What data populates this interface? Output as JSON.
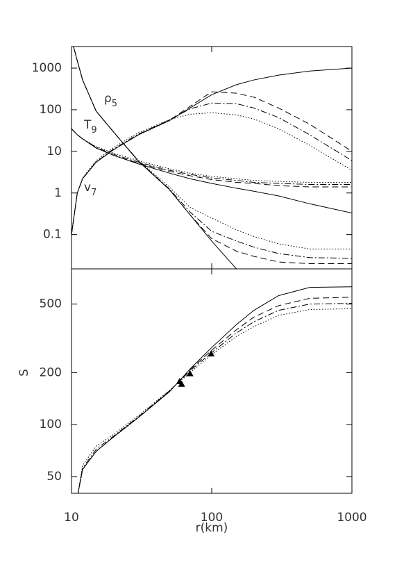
{
  "chart_data": [
    {
      "type": "line",
      "x": [
        10,
        11,
        12,
        15,
        20,
        30,
        50,
        70,
        100,
        150,
        200,
        300,
        500,
        1000
      ],
      "xlim": [
        10,
        1000
      ],
      "xticks": [
        10,
        100,
        1000
      ],
      "xlog": true,
      "ylim": [
        0.015,
        3300
      ],
      "yticks": [
        0.1,
        1,
        10,
        100,
        1000
      ],
      "ylog": true,
      "color": "#000000",
      "labels": [
        {
          "text": "ρ",
          "sub": "5"
        },
        {
          "text": "T",
          "sub": "9"
        },
        {
          "text": "v",
          "sub": "7"
        }
      ],
      "series": [
        {
          "dash": "solid",
          "values": [
            0.1,
            1,
            2.2,
            5.5,
            11,
            25,
            55,
            110,
            230,
            400,
            520,
            680,
            850,
            1000
          ]
        },
        {
          "dash": "dashed",
          "values": [
            0.1,
            1,
            2.2,
            5.5,
            11,
            25,
            56,
            120,
            270,
            250,
            200,
            110,
            45,
            10
          ]
        },
        {
          "dash": "dashdot",
          "values": [
            0.1,
            1,
            2.2,
            5.6,
            11.5,
            26,
            57,
            105,
            145,
            140,
            110,
            65,
            25,
            6
          ]
        },
        {
          "dash": "dotted",
          "values": [
            0.1,
            1,
            2.3,
            6,
            12.5,
            28,
            58,
            78,
            85,
            75,
            60,
            35,
            14,
            3.5
          ]
        },
        {
          "dash": "solid",
          "values": [
            5000,
            1500,
            520,
            92,
            29,
            5.8,
            1.2,
            0.3,
            0.07,
            0.015,
            null,
            null,
            null,
            null
          ]
        },
        {
          "dash": "dashed",
          "values": [
            5000,
            1500,
            520,
            92,
            29,
            5.8,
            1.2,
            0.3,
            0.08,
            0.04,
            0.03,
            0.022,
            0.02,
            0.02
          ]
        },
        {
          "dash": "dashdot",
          "values": [
            5000,
            1500,
            520,
            92,
            29,
            5.9,
            1.25,
            0.35,
            0.12,
            0.07,
            0.05,
            0.035,
            0.028,
            0.027
          ]
        },
        {
          "dash": "dotted",
          "values": [
            5000,
            1500,
            520,
            92,
            29,
            6,
            1.4,
            0.45,
            0.25,
            0.13,
            0.09,
            0.06,
            0.045,
            0.045
          ]
        },
        {
          "dash": "solid",
          "values": [
            35,
            25,
            20,
            12,
            8,
            5,
            3,
            2.2,
            1.7,
            1.3,
            1.1,
            0.85,
            0.55,
            0.33
          ]
        },
        {
          "dash": "dashed",
          "values": [
            35,
            25,
            20,
            12,
            8,
            5.2,
            3.3,
            2.6,
            2.1,
            1.8,
            1.7,
            1.5,
            1.4,
            1.4
          ]
        },
        {
          "dash": "dashdot",
          "values": [
            35,
            25,
            20,
            12.5,
            8.5,
            5.5,
            3.5,
            2.8,
            2.3,
            2,
            1.8,
            1.7,
            1.6,
            1.6
          ]
        },
        {
          "dash": "dotted",
          "values": [
            35,
            25,
            20,
            13,
            9,
            6,
            3.8,
            3,
            2.5,
            2.2,
            2,
            1.9,
            1.8,
            1.8
          ]
        }
      ]
    },
    {
      "type": "line",
      "x": [
        10,
        11,
        12,
        15,
        20,
        30,
        50,
        70,
        100,
        150,
        200,
        300,
        500,
        1000
      ],
      "xlim": [
        10,
        1000
      ],
      "xticks": [
        10,
        100,
        1000
      ],
      "xlog": true,
      "ylim": [
        40,
        800
      ],
      "yticks": [
        50,
        100,
        200,
        500
      ],
      "ylog": true,
      "xlabel": "r(km)",
      "ylabel": "S",
      "color": "#000000",
      "series": [
        {
          "dash": "solid",
          "values": [
            null,
            38,
            55,
            70,
            85,
            110,
            155,
            210,
            280,
            380,
            460,
            560,
            625,
            630
          ]
        },
        {
          "dash": "dashed",
          "values": [
            null,
            38,
            55,
            70,
            85,
            110,
            156,
            208,
            270,
            355,
            420,
            490,
            540,
            548
          ]
        },
        {
          "dash": "dashdot",
          "values": [
            null,
            38,
            56,
            72,
            86,
            111,
            157,
            205,
            262,
            340,
            395,
            460,
            500,
            505
          ]
        },
        {
          "dash": "dotted",
          "values": [
            null,
            38,
            58,
            75,
            88,
            113,
            158,
            200,
            255,
            325,
            370,
            430,
            465,
            470
          ]
        }
      ],
      "markers": {
        "x": [
          59,
          61,
          70,
          99
        ],
        "values": [
          178,
          172,
          198,
          258
        ]
      }
    }
  ]
}
